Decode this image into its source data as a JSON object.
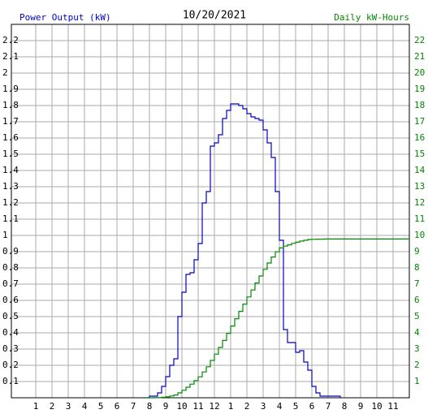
{
  "chart_data": {
    "type": "step",
    "title": "10/20/2021",
    "ylabel": "Power Output (kW)",
    "y2label": "Daily kW-Hours",
    "xlim": [
      -0.5,
      24
    ],
    "xticks": [
      1,
      2,
      3,
      4,
      5,
      6,
      7,
      8,
      9,
      10,
      11,
      12,
      {
        "value": 13,
        "label": "1"
      },
      {
        "value": 14,
        "label": "2"
      },
      {
        "value": 15,
        "label": "3"
      },
      {
        "value": 16,
        "label": "4"
      },
      {
        "value": 17,
        "label": "5"
      },
      {
        "value": 18,
        "label": "6"
      },
      {
        "value": 19,
        "label": "7"
      },
      {
        "value": 20,
        "label": "8"
      },
      {
        "value": 21,
        "label": "9"
      },
      {
        "value": 22,
        "label": "10"
      },
      {
        "value": 23,
        "label": "11"
      }
    ],
    "ylim": [
      0,
      2.3
    ],
    "yticks": [
      0.1,
      0.2,
      0.3,
      0.4,
      0.5,
      0.6,
      0.7,
      0.8,
      0.9,
      1.0,
      1.1,
      1.2,
      1.3,
      1.4,
      1.5,
      1.6,
      1.7,
      1.8,
      1.9,
      2.0,
      2.1,
      2.2
    ],
    "y2lim": [
      0,
      23
    ],
    "y2ticks": [
      1,
      2,
      3,
      4,
      5,
      6,
      7,
      8,
      9,
      10,
      11,
      12,
      13,
      14,
      15,
      16,
      17,
      18,
      19,
      20,
      21,
      22
    ],
    "grid": true,
    "ylabel_color": "#0000cc",
    "y2label_color": "#008800",
    "series": [
      {
        "color": "#0000cc",
        "x": [
          7.75,
          8,
          8.25,
          8.5,
          8.75,
          9,
          9.25,
          9.5,
          9.75,
          10,
          10.25,
          10.5,
          10.75,
          11,
          11.25,
          11.5,
          11.75,
          12,
          12.25,
          12.5,
          12.75,
          13,
          13.25,
          13.5,
          13.75,
          14,
          14.25,
          14.5,
          14.75,
          15,
          15.25,
          15.5,
          15.75,
          16,
          16.25,
          16.5,
          16.75,
          17,
          17.25,
          17.5,
          17.75,
          18,
          18.25,
          18.5,
          18.75,
          19,
          19.25,
          19.5,
          19.75
        ],
        "values": [
          0,
          0.01,
          0.01,
          0.03,
          0.07,
          0.13,
          0.2,
          0.24,
          0.5,
          0.65,
          0.76,
          0.77,
          0.85,
          0.95,
          1.2,
          1.27,
          1.55,
          1.57,
          1.62,
          1.72,
          1.77,
          1.81,
          1.81,
          1.8,
          1.78,
          1.75,
          1.73,
          1.72,
          1.71,
          1.65,
          1.57,
          1.48,
          1.27,
          0.97,
          0.42,
          0.34,
          0.34,
          0.28,
          0.29,
          0.22,
          0.17,
          0.07,
          0.03,
          0.01,
          0.01,
          0.01,
          0.01,
          0.01,
          0
        ]
      },
      {
        "color": "#008800",
        "axis": "y2",
        "x": [
          7.75,
          8,
          8.25,
          8.5,
          8.75,
          9,
          9.25,
          9.5,
          9.75,
          10,
          10.25,
          10.5,
          10.75,
          11,
          11.25,
          11.5,
          11.75,
          12,
          12.25,
          12.5,
          12.75,
          13,
          13.25,
          13.5,
          13.75,
          14,
          14.25,
          14.5,
          14.75,
          15,
          15.25,
          15.5,
          15.75,
          16,
          16.25,
          16.5,
          16.75,
          17,
          17.25,
          17.5,
          17.75,
          18,
          18.25,
          18.5,
          18.75,
          19,
          19.25,
          19.5,
          19.75,
          24
        ],
        "values": [
          0,
          0,
          0.01,
          0.01,
          0.03,
          0.06,
          0.11,
          0.17,
          0.3,
          0.46,
          0.65,
          0.84,
          1.06,
          1.29,
          1.59,
          1.91,
          2.3,
          2.69,
          3.1,
          3.53,
          3.97,
          4.42,
          4.87,
          5.32,
          5.77,
          6.21,
          6.64,
          7.07,
          7.5,
          7.91,
          8.3,
          8.67,
          8.99,
          9.23,
          9.34,
          9.42,
          9.51,
          9.58,
          9.65,
          9.7,
          9.75,
          9.76,
          9.77,
          9.77,
          9.78,
          9.78,
          9.78,
          9.78,
          9.78,
          9.78
        ]
      }
    ]
  }
}
